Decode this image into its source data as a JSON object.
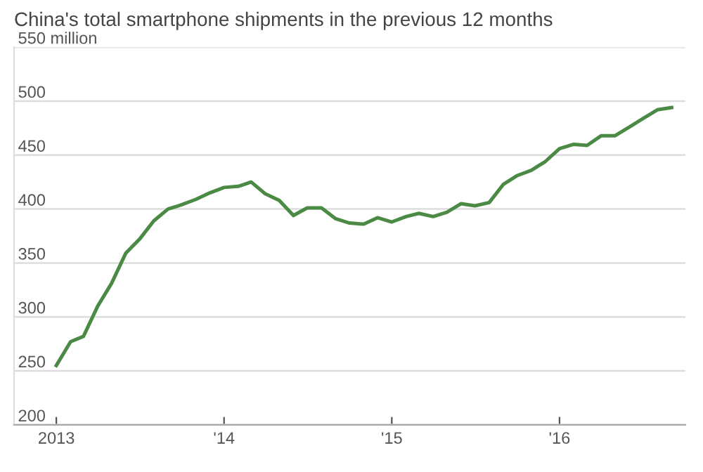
{
  "chart_data": {
    "type": "line",
    "title": "China's total smartphone shipments in the previous 12 months",
    "x": [
      "2013-01",
      "2013-02",
      "2013-03",
      "2013-04",
      "2013-05",
      "2013-06",
      "2013-07",
      "2013-08",
      "2013-09",
      "2013-10",
      "2013-11",
      "2013-12",
      "2014-01",
      "2014-02",
      "2014-03",
      "2014-04",
      "2014-05",
      "2014-06",
      "2014-07",
      "2014-08",
      "2014-09",
      "2014-10",
      "2014-11",
      "2014-12",
      "2015-01",
      "2015-02",
      "2015-03",
      "2015-04",
      "2015-05",
      "2015-06",
      "2015-07",
      "2015-08",
      "2015-09",
      "2015-10",
      "2015-11",
      "2015-12",
      "2016-01",
      "2016-02",
      "2016-03",
      "2016-04",
      "2016-05",
      "2016-06",
      "2016-07",
      "2016-08",
      "2016-09"
    ],
    "series": [
      {
        "color": "#4a8a45",
        "values": [
          255,
          277,
          282,
          310,
          331,
          359,
          372,
          389,
          400,
          404,
          409,
          415,
          420,
          421,
          425,
          414,
          408,
          394,
          401,
          401,
          391,
          387,
          386,
          392,
          388,
          393,
          396,
          393,
          397,
          405,
          403,
          406,
          423,
          431,
          436,
          444,
          456,
          460,
          459,
          468,
          468,
          476,
          484,
          492,
          494
        ]
      }
    ],
    "xlim": [
      "2012-10",
      "2016-10"
    ],
    "xticks": [
      {
        "value": "2013-01",
        "label": "2013"
      },
      {
        "value": "2014-01",
        "label": "'14"
      },
      {
        "value": "2015-01",
        "label": "'15"
      },
      {
        "value": "2016-01",
        "label": "'16"
      }
    ],
    "ylim": [
      200,
      550
    ],
    "yticks": [
      200,
      250,
      300,
      350,
      400,
      450,
      500,
      {
        "value": 550,
        "label": "550 million"
      }
    ],
    "grid": "y",
    "marker": "none",
    "line_style": "solid"
  }
}
